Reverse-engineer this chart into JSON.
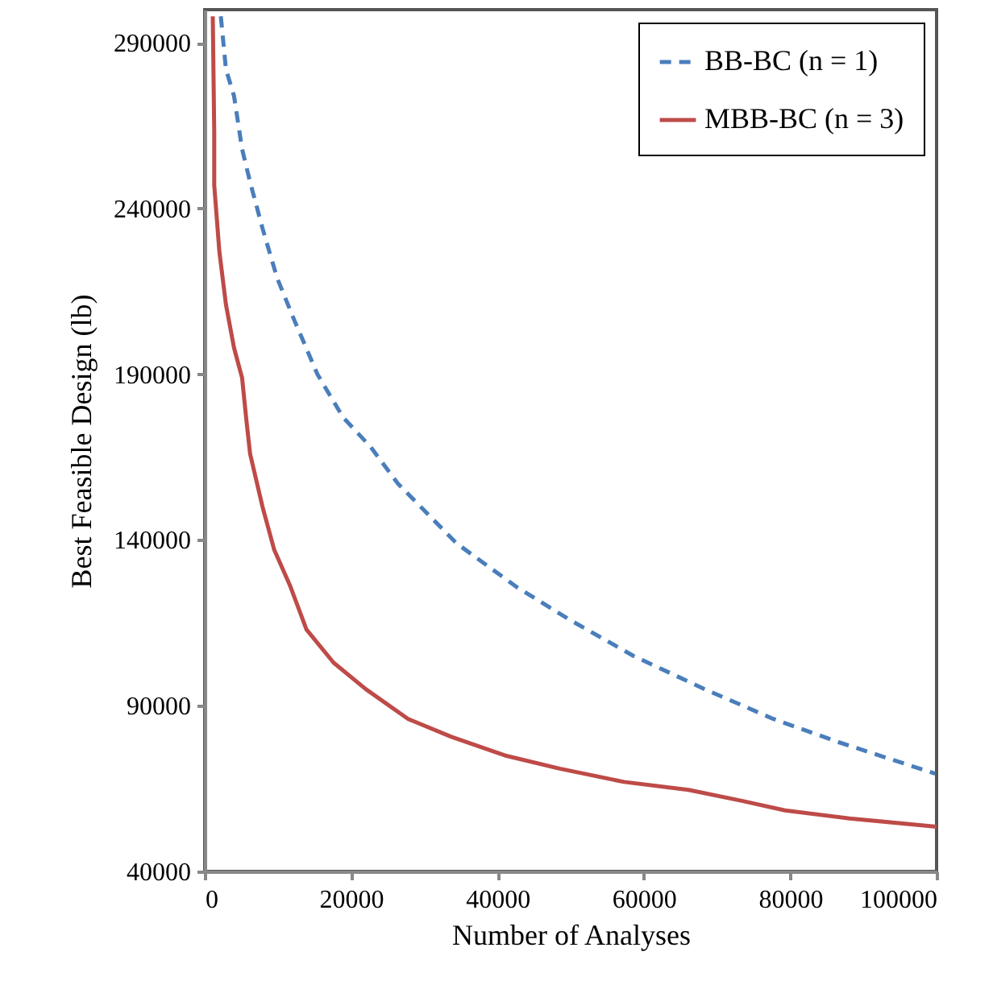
{
  "chart_data": {
    "type": "line",
    "xlabel": "Number of Analyses",
    "ylabel": "Best Feasible Design (lb)",
    "xlim": [
      0,
      100000
    ],
    "xticks": [
      0,
      20000,
      40000,
      60000,
      80000,
      100000
    ],
    "ylim": [
      40000,
      300000
    ],
    "yticks": [
      40000,
      90000,
      140000,
      190000,
      240000,
      290000
    ],
    "grid": false,
    "legend": "top right",
    "series": [
      {
        "name": "BB-BC (n = 1)",
        "color": "#4a7ebb",
        "line_style": "dashed",
        "x": [
          2200,
          2900,
          4000,
          5100,
          6200,
          7900,
          9900,
          12300,
          15400,
          18900,
          22700,
          26400,
          34400,
          42500,
          49800,
          58600,
          68300,
          77700,
          86600,
          99800
        ],
        "values": [
          298000,
          282000,
          274000,
          258000,
          248000,
          234000,
          219000,
          206000,
          190000,
          177000,
          168000,
          157000,
          139000,
          126000,
          116000,
          105000,
          95000,
          86000,
          79000,
          69500
        ]
      },
      {
        "name": "MBB-BC (n = 3)",
        "color": "#be4b48",
        "line_style": "solid",
        "x": [
          1100,
          1300,
          1300,
          2000,
          2900,
          4000,
          5100,
          5700,
          6200,
          7900,
          9500,
          11700,
          13900,
          17600,
          22000,
          27800,
          33700,
          41000,
          48500,
          57300,
          66100,
          73400,
          79300,
          88100,
          100000
        ],
        "values": [
          298000,
          263000,
          247000,
          227000,
          211000,
          198000,
          189000,
          176000,
          166000,
          150000,
          137000,
          126000,
          113000,
          103000,
          95000,
          86000,
          80600,
          75000,
          71000,
          67000,
          64600,
          61300,
          58400,
          56000,
          53500
        ]
      }
    ]
  }
}
